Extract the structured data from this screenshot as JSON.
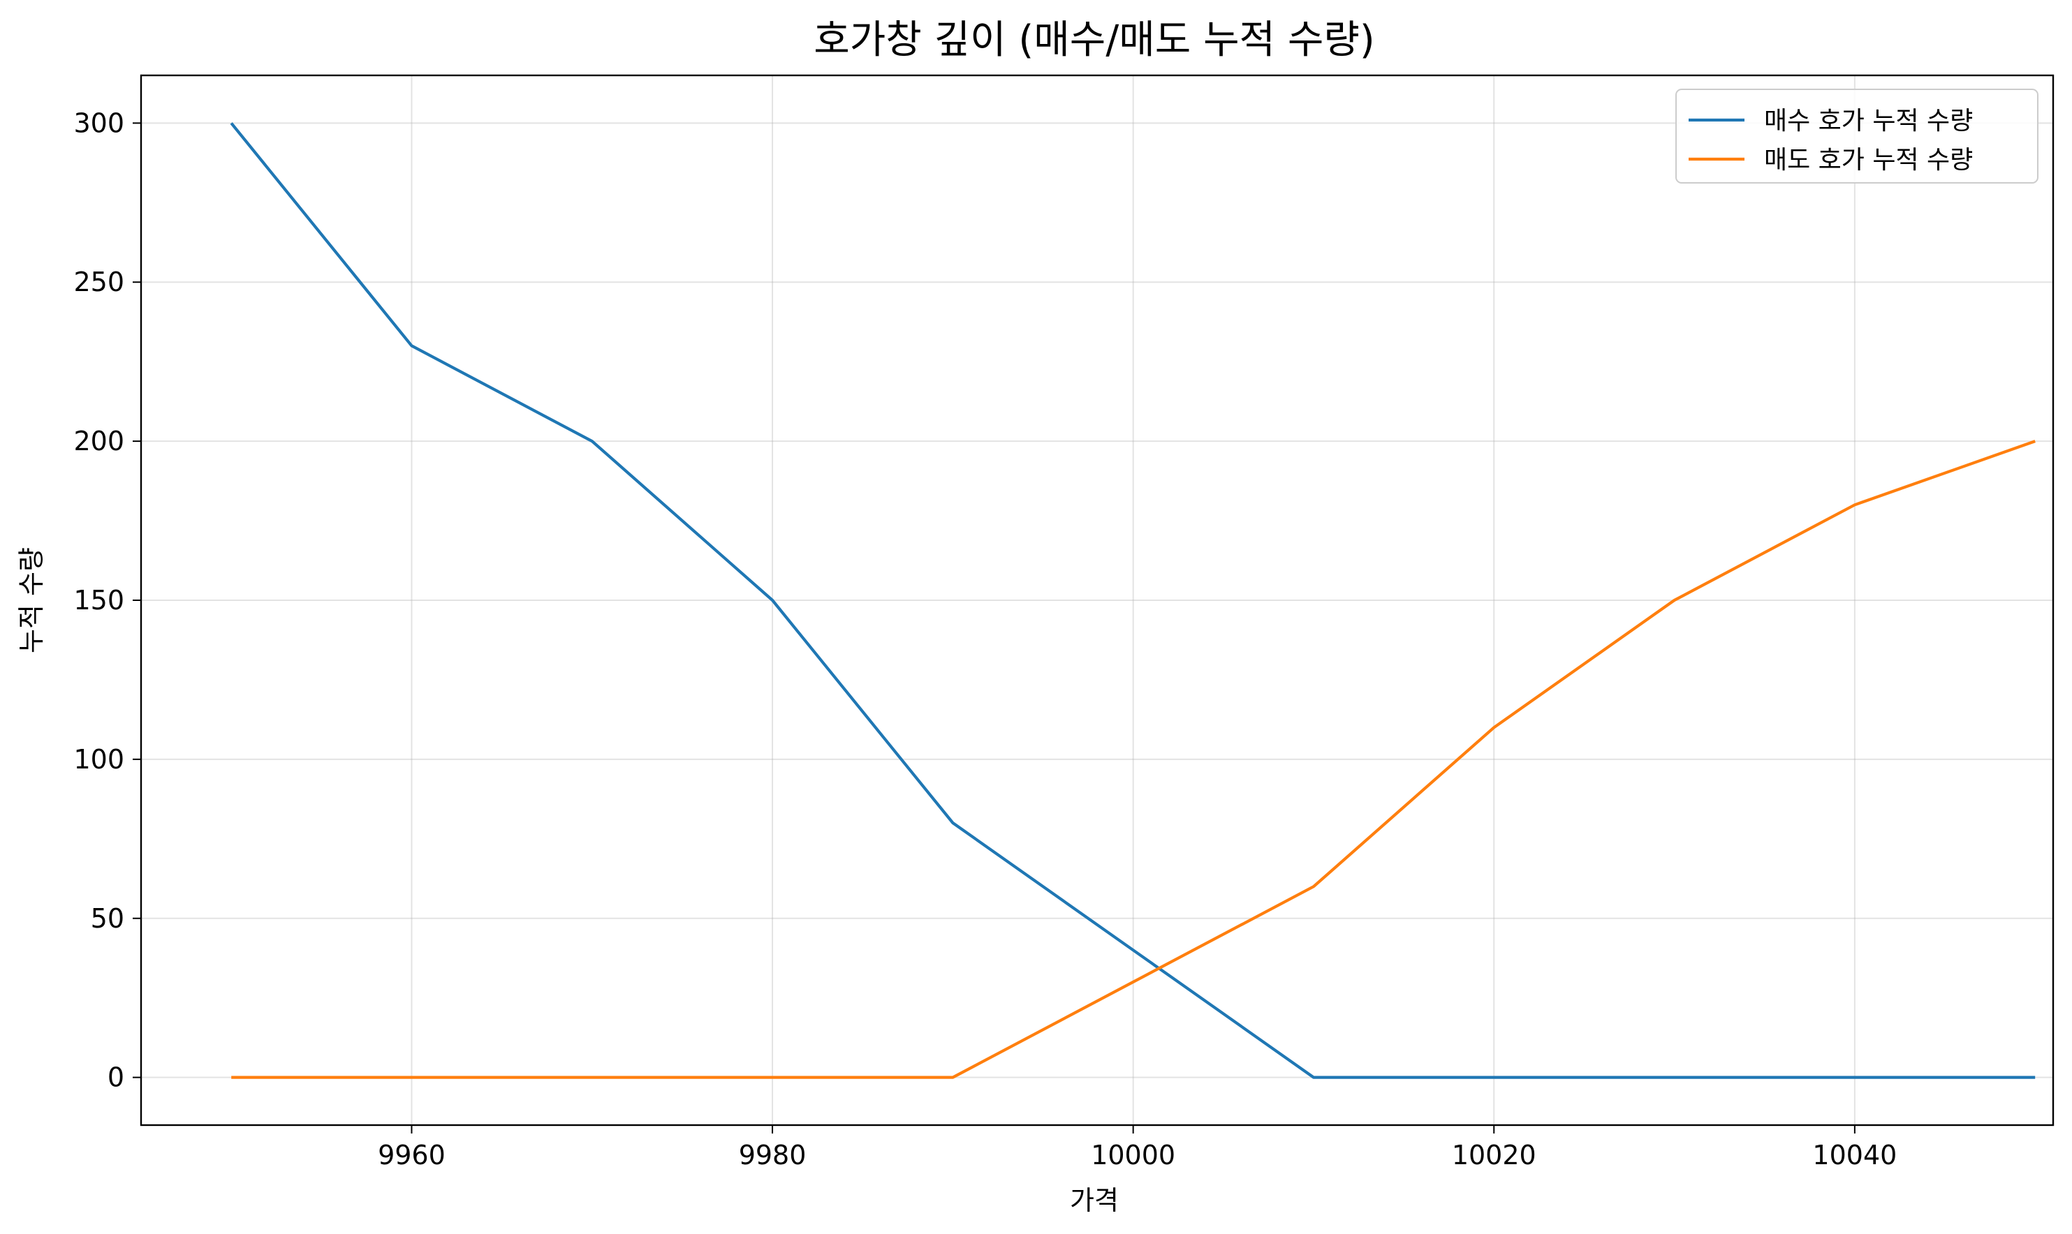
{
  "chart_data": {
    "type": "line",
    "title": "호가창 깊이 (매수/매도 누적 수량)",
    "xlabel": "가격",
    "ylabel": "누적 수량",
    "x": [
      9950,
      9960,
      9970,
      9980,
      9990,
      10000,
      10010,
      10020,
      10030,
      10040,
      10050
    ],
    "series": [
      {
        "name": "매수 호가 누적 수량",
        "color": "#1f77b4",
        "values": [
          300,
          230,
          200,
          150,
          80,
          40,
          0,
          0,
          0,
          0,
          0
        ]
      },
      {
        "name": "매도 호가 누적 수량",
        "color": "#ff7f0e",
        "values": [
          0,
          0,
          0,
          0,
          0,
          30,
          60,
          110,
          150,
          180,
          200
        ]
      }
    ],
    "xlim": [
      9945,
      10051
    ],
    "ylim": [
      -15,
      315
    ],
    "xticks": [
      9960,
      9980,
      10000,
      10020,
      10040
    ],
    "yticks": [
      0,
      50,
      100,
      150,
      200,
      250,
      300
    ],
    "grid": true,
    "legend_position": "top-right"
  }
}
